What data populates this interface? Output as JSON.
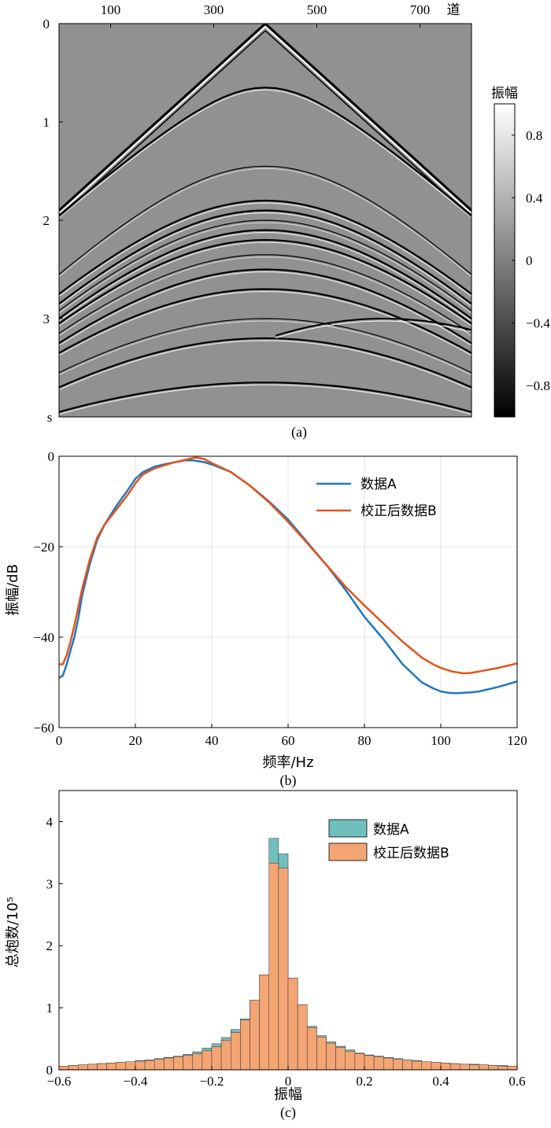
{
  "chart_data": [
    {
      "id": "a",
      "type": "heatmap",
      "panel_label": "(a)",
      "x_ticks": [
        "100",
        "300",
        "500",
        "700"
      ],
      "x_tick_values": [
        100,
        300,
        500,
        700
      ],
      "x_unit_label": "道",
      "xlim": [
        0,
        800
      ],
      "y_ticks": [
        "0",
        "1",
        "2",
        "3"
      ],
      "y_tick_values": [
        0,
        1,
        2,
        3
      ],
      "y_unit_label": "s",
      "ylim": [
        0,
        4
      ],
      "y_direction": "down",
      "colorbar": {
        "label": "振幅",
        "ticks": [
          "0.8",
          "0.4",
          "0",
          "−0.4",
          "−0.8"
        ],
        "tick_values": [
          0.8,
          0.4,
          0,
          -0.4,
          -0.8
        ],
        "range": [
          -1,
          1
        ],
        "colormap": "gray"
      },
      "events": {
        "direct_wave_apex": {
          "trace": 400,
          "time": 0.0
        },
        "direct_wave_edges": [
          {
            "trace": 0,
            "time": 1.9
          },
          {
            "trace": 800,
            "time": 1.9
          }
        ],
        "hyperbolas": [
          {
            "apex_trace": 400,
            "t0": 0.65,
            "edge_time": 1.95
          },
          {
            "apex_trace": 400,
            "t0": 1.45,
            "edge_time": 2.55
          },
          {
            "apex_trace": 400,
            "t0": 1.8,
            "edge_time": 2.75
          },
          {
            "apex_trace": 400,
            "t0": 1.9,
            "edge_time": 2.85
          },
          {
            "apex_trace": 400,
            "t0": 2.0,
            "edge_time": 2.92
          },
          {
            "apex_trace": 400,
            "t0": 2.1,
            "edge_time": 3.0
          },
          {
            "apex_trace": 400,
            "t0": 2.2,
            "edge_time": 3.05
          },
          {
            "apex_trace": 400,
            "t0": 2.35,
            "edge_time": 3.15
          },
          {
            "apex_trace": 400,
            "t0": 2.5,
            "edge_time": 3.25
          },
          {
            "apex_trace": 400,
            "t0": 2.7,
            "edge_time": 3.35
          },
          {
            "apex_trace": 400,
            "t0": 3.0,
            "edge_time": 3.55
          },
          {
            "apex_trace": 400,
            "t0": 3.2,
            "edge_time": 3.7
          },
          {
            "apex_trace": 400,
            "t0": 3.65,
            "edge_time": 3.95
          }
        ],
        "diffraction": {
          "apex_trace": 630,
          "t0": 3.0
        }
      }
    },
    {
      "id": "b",
      "type": "line",
      "panel_label": "(b)",
      "xlabel": "频率/Hz",
      "ylabel": "振幅/dB",
      "xlim": [
        0,
        120
      ],
      "ylim": [
        -60,
        0
      ],
      "x_ticks": [
        0,
        20,
        40,
        60,
        80,
        100,
        120
      ],
      "y_ticks": [
        0,
        -20,
        -40,
        -60
      ],
      "y_tick_labels": [
        "0",
        "−20",
        "−40",
        "−60"
      ],
      "grid": true,
      "legend_position": "top-right",
      "series": [
        {
          "name": "数据A",
          "color": "#1f77c4",
          "x": [
            0,
            1,
            2,
            3,
            4,
            5,
            6,
            8,
            10,
            12,
            15,
            18,
            20,
            22,
            25,
            28,
            30,
            33,
            35,
            38,
            40,
            45,
            50,
            55,
            60,
            65,
            70,
            75,
            80,
            85,
            90,
            95,
            98,
            100,
            102,
            104,
            106,
            108,
            110,
            115,
            120
          ],
          "y": [
            -49,
            -48.5,
            -46,
            -43,
            -40,
            -36,
            -31,
            -24,
            -18.5,
            -15,
            -11,
            -7.5,
            -5,
            -3.5,
            -2.3,
            -1.7,
            -1.4,
            -0.9,
            -0.9,
            -1.3,
            -1.8,
            -3.5,
            -6.5,
            -10,
            -14,
            -19,
            -24,
            -29.5,
            -35.5,
            -40.5,
            -46,
            -50,
            -51.3,
            -52,
            -52.3,
            -52.4,
            -52.3,
            -52.2,
            -52,
            -51,
            -49.8
          ]
        },
        {
          "name": "校正后数据B",
          "color": "#e4541c",
          "x": [
            0,
            1,
            2,
            3,
            4,
            5,
            6,
            8,
            10,
            12,
            15,
            18,
            20,
            22,
            25,
            28,
            30,
            33,
            35,
            36,
            38,
            40,
            45,
            50,
            55,
            60,
            65,
            70,
            75,
            80,
            85,
            90,
            95,
            98,
            100,
            103,
            106,
            108,
            110,
            115,
            120
          ],
          "y": [
            -46,
            -46,
            -44,
            -41,
            -37.5,
            -33.5,
            -29.5,
            -23,
            -18,
            -15,
            -11.8,
            -8.5,
            -6,
            -4,
            -2.7,
            -1.9,
            -1.4,
            -0.8,
            -0.4,
            -0.3,
            -0.6,
            -1.5,
            -3.5,
            -6.5,
            -10.2,
            -14.5,
            -19.2,
            -24,
            -28.8,
            -33,
            -37,
            -41,
            -44.5,
            -46,
            -46.8,
            -47.6,
            -48,
            -47.9,
            -47.6,
            -46.8,
            -45.8
          ]
        }
      ]
    },
    {
      "id": "c",
      "type": "bar",
      "panel_label": "(c)",
      "xlabel": "振幅",
      "ylabel": "总炮数/10⁵",
      "xlim": [
        -0.6,
        0.6
      ],
      "ylim": [
        0,
        4.5
      ],
      "x_ticks": [
        -0.6,
        -0.4,
        -0.2,
        0,
        0.2,
        0.4,
        0.6
      ],
      "x_tick_labels": [
        "−0.6",
        "−0.4",
        "−0.2",
        "0",
        "0.2",
        "0.4",
        "0.6"
      ],
      "y_ticks": [
        0,
        1,
        2,
        3,
        4
      ],
      "legend_position": "top-right",
      "bin_edges": [
        -0.6,
        -0.575,
        -0.55,
        -0.525,
        -0.5,
        -0.475,
        -0.45,
        -0.425,
        -0.4,
        -0.375,
        -0.35,
        -0.325,
        -0.3,
        -0.275,
        -0.25,
        -0.225,
        -0.2,
        -0.175,
        -0.15,
        -0.125,
        -0.1,
        -0.075,
        -0.05,
        -0.025,
        0,
        0.025,
        0.05,
        0.075,
        0.1,
        0.125,
        0.15,
        0.175,
        0.2,
        0.225,
        0.25,
        0.275,
        0.3,
        0.325,
        0.35,
        0.375,
        0.4,
        0.425,
        0.45,
        0.475,
        0.5,
        0.525,
        0.55,
        0.575,
        0.6
      ],
      "series": [
        {
          "name": "数据A",
          "color": "#6fbfbd",
          "values": [
            0.06,
            0.07,
            0.08,
            0.09,
            0.1,
            0.11,
            0.12,
            0.13,
            0.15,
            0.16,
            0.18,
            0.2,
            0.22,
            0.25,
            0.29,
            0.35,
            0.42,
            0.52,
            0.65,
            0.82,
            1.12,
            1.53,
            3.73,
            3.48,
            1.48,
            1.05,
            0.7,
            0.55,
            0.45,
            0.38,
            0.32,
            0.27,
            0.24,
            0.22,
            0.2,
            0.18,
            0.16,
            0.15,
            0.13,
            0.12,
            0.11,
            0.1,
            0.09,
            0.09,
            0.08,
            0.07,
            0.07,
            0.06
          ]
        },
        {
          "name": "校正后数据B",
          "color": "#f4a574",
          "values": [
            0.06,
            0.07,
            0.08,
            0.09,
            0.1,
            0.11,
            0.12,
            0.13,
            0.14,
            0.15,
            0.17,
            0.19,
            0.21,
            0.23,
            0.26,
            0.31,
            0.37,
            0.47,
            0.6,
            0.8,
            1.12,
            1.53,
            3.33,
            3.25,
            1.48,
            1.05,
            0.68,
            0.53,
            0.43,
            0.36,
            0.3,
            0.26,
            0.23,
            0.21,
            0.19,
            0.17,
            0.16,
            0.14,
            0.13,
            0.12,
            0.11,
            0.1,
            0.09,
            0.08,
            0.08,
            0.07,
            0.06,
            0.06
          ]
        }
      ]
    }
  ]
}
